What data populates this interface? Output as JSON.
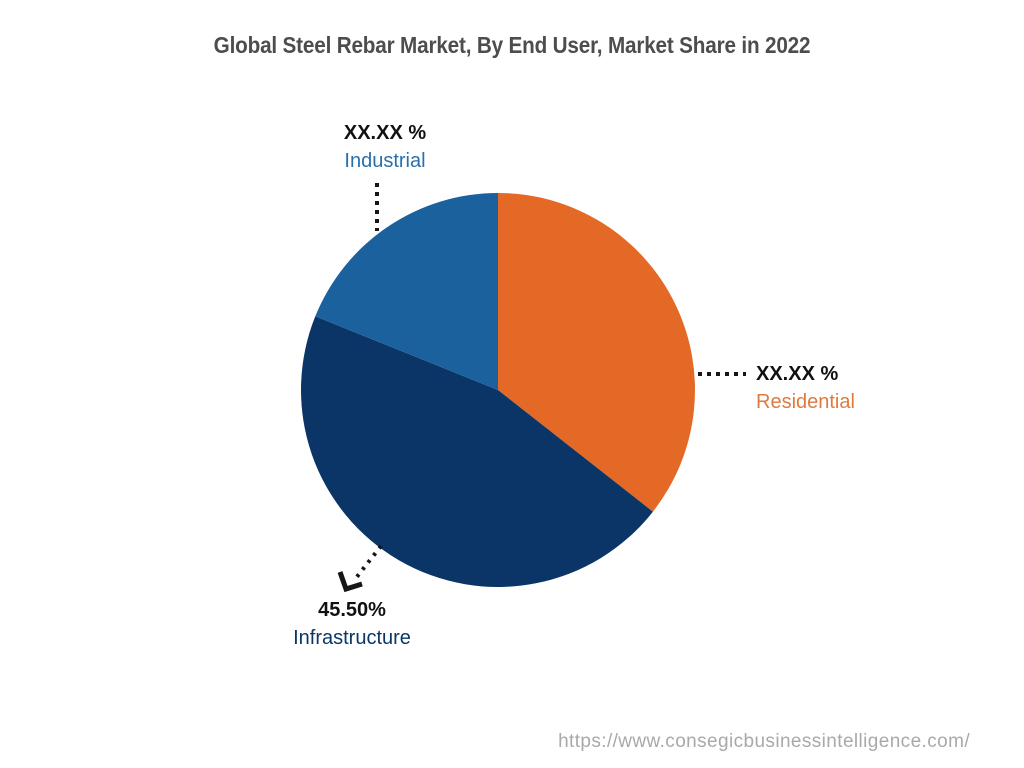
{
  "page": {
    "title": "Global Steel Rebar Market, By End User, Market Share in 2022",
    "source_url": "https://www.consegicbusinessintelligence.com/"
  },
  "chart_data": {
    "type": "pie",
    "title": "Global Steel Rebar Market, By End User, Market Share in 2022",
    "unit": "% market share",
    "direction": "clockwise",
    "start_angle_deg": 0,
    "legend_position": "callout-labels",
    "slices": [
      {
        "label": "Residential",
        "display_value": "XX.XX %",
        "value": 35.6,
        "color": "#E56926",
        "label_color": "#DF7A3E"
      },
      {
        "label": "Infrastructure",
        "display_value": "45.50%",
        "value": 45.5,
        "color": "#0A3566",
        "label_color": "#0B3767"
      },
      {
        "label": "Industrial",
        "display_value": "XX.XX %",
        "value": 18.9,
        "color": "#1B619E",
        "label_color": "#2A6FAC"
      }
    ]
  }
}
